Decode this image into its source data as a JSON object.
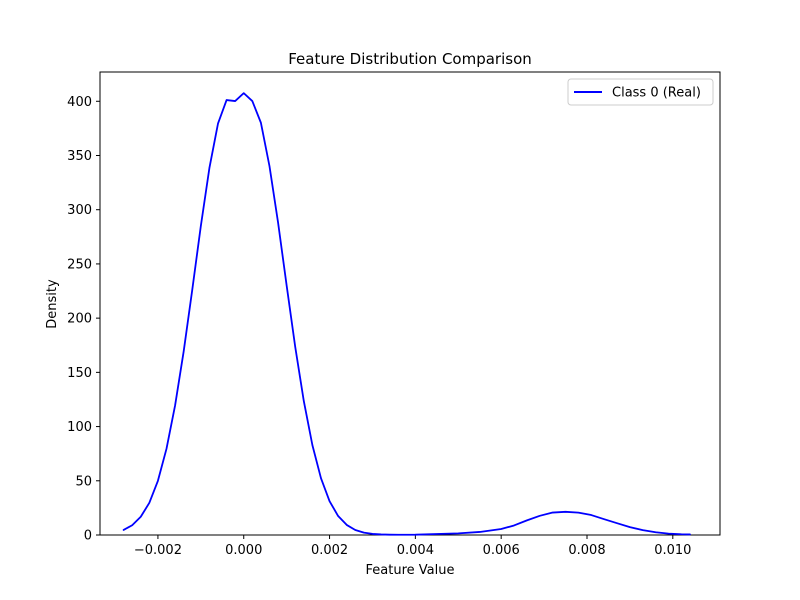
{
  "chart_data": {
    "type": "line",
    "title": "Feature Distribution Comparison",
    "xlabel": "Feature Value",
    "ylabel": "Density",
    "xlim": [
      -0.00335,
      0.0111
    ],
    "ylim": [
      0,
      427
    ],
    "x_ticks": [
      {
        "value": -0.002,
        "label": "−0.002"
      },
      {
        "value": 0.0,
        "label": "0.000"
      },
      {
        "value": 0.002,
        "label": "0.002"
      },
      {
        "value": 0.004,
        "label": "0.004"
      },
      {
        "value": 0.006,
        "label": "0.006"
      },
      {
        "value": 0.008,
        "label": "0.008"
      },
      {
        "value": 0.01,
        "label": "0.010"
      }
    ],
    "y_ticks": [
      {
        "value": 0,
        "label": "0"
      },
      {
        "value": 50,
        "label": "50"
      },
      {
        "value": 100,
        "label": "100"
      },
      {
        "value": 150,
        "label": "150"
      },
      {
        "value": 200,
        "label": "200"
      },
      {
        "value": 250,
        "label": "250"
      },
      {
        "value": 300,
        "label": "300"
      },
      {
        "value": 350,
        "label": "350"
      },
      {
        "value": 400,
        "label": "400"
      }
    ],
    "grid": false,
    "legend_position": "top-right",
    "series": [
      {
        "name": "Class 0 (Real)",
        "color": "#0000ff",
        "x": [
          -0.0028,
          -0.0026,
          -0.0024,
          -0.0022,
          -0.002,
          -0.0018,
          -0.0016,
          -0.0014,
          -0.0012,
          -0.001,
          -0.0008,
          -0.0006,
          -0.0004,
          -0.0002,
          0.0,
          0.0002,
          0.0004,
          0.0006,
          0.0008,
          0.001,
          0.0012,
          0.0014,
          0.0016,
          0.0018,
          0.002,
          0.0022,
          0.0024,
          0.0026,
          0.0028,
          0.003,
          0.0032,
          0.0034,
          0.0036,
          0.004,
          0.0045,
          0.005,
          0.0055,
          0.006,
          0.0063,
          0.0066,
          0.0069,
          0.0072,
          0.0075,
          0.0078,
          0.0081,
          0.0084,
          0.0087,
          0.009,
          0.0093,
          0.0096,
          0.0099,
          0.0102,
          0.0104
        ],
        "y": [
          4.7,
          9.0,
          16.8,
          29.7,
          50.0,
          79.6,
          119.5,
          169.3,
          226.1,
          285.0,
          338.5,
          379.4,
          401.1,
          400.2,
          407.5,
          400.2,
          380.2,
          340.2,
          288.2,
          230.1,
          173.5,
          123.5,
          82.9,
          52.4,
          31.2,
          17.5,
          9.3,
          4.6,
          2.2,
          1.0,
          0.5,
          0.3,
          0.2,
          0.3,
          0.9,
          1.5,
          2.8,
          5.5,
          8.8,
          13.5,
          17.7,
          20.7,
          21.4,
          20.6,
          18.4,
          14.6,
          10.9,
          7.3,
          4.5,
          2.5,
          1.3,
          0.7,
          0.5
        ]
      }
    ]
  }
}
